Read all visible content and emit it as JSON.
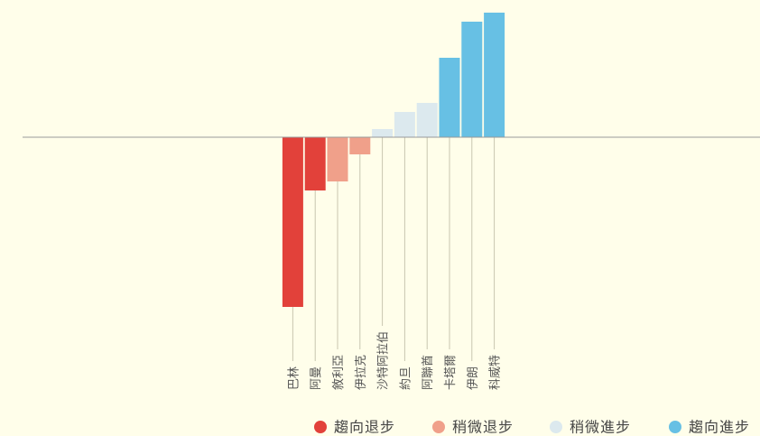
{
  "chart_data": {
    "type": "bar",
    "categories": [
      "巴林",
      "阿曼",
      "敘利亞",
      "伊拉克",
      "沙特阿拉伯",
      "約旦",
      "阿聯酋",
      "卡塔爾",
      "伊朗",
      "科威特"
    ],
    "series": [
      {
        "name": "趨向退步",
        "color": "#e2413a",
        "values": [
          -188,
          -59,
          null,
          null,
          null,
          null,
          null,
          null,
          null,
          null
        ]
      },
      {
        "name": "稍微退步",
        "color": "#f0a08a",
        "values": [
          null,
          null,
          -49,
          -19,
          null,
          null,
          null,
          null,
          null,
          null
        ]
      },
      {
        "name": "稍微進步",
        "color": "#dce9ee",
        "values": [
          null,
          null,
          null,
          null,
          9,
          28,
          38,
          null,
          null,
          null
        ]
      },
      {
        "name": "趨向進步",
        "color": "#67c0e4",
        "values": [
          null,
          null,
          null,
          null,
          null,
          null,
          null,
          88,
          128,
          138
        ]
      }
    ],
    "ylim": [
      -200,
      142
    ]
  }
}
